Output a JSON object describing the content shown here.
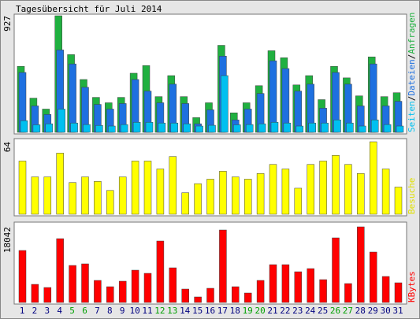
{
  "chart_data": [
    {
      "type": "bar",
      "title": "Tagesübersicht für Juli 2014",
      "categories": [
        "1",
        "2",
        "3",
        "4",
        "5",
        "6",
        "7",
        "8",
        "9",
        "10",
        "11",
        "12",
        "13",
        "14",
        "15",
        "16",
        "17",
        "18",
        "19",
        "20",
        "21",
        "22",
        "23",
        "24",
        "25",
        "26",
        "27",
        "28",
        "29",
        "30",
        "31"
      ],
      "category_colors": [
        "#000080",
        "#000080",
        "#000080",
        "#000080",
        "#00a000",
        "#00a000",
        "#000080",
        "#000080",
        "#000080",
        "#000080",
        "#000080",
        "#00a000",
        "#00a000",
        "#000080",
        "#000080",
        "#000080",
        "#000080",
        "#000080",
        "#00a000",
        "#00a000",
        "#000080",
        "#000080",
        "#000080",
        "#000080",
        "#000080",
        "#00a000",
        "#00a000",
        "#000080",
        "#000080",
        "#000080",
        "#000080"
      ],
      "legend_separator": "/",
      "ylim": [
        0,
        927
      ],
      "yticks": [
        927
      ],
      "series": [
        {
          "name": "Anfragen",
          "color": "#20b040",
          "values": [
            525,
            272,
            185,
            927,
            618,
            420,
            278,
            235,
            278,
            470,
            531,
            284,
            451,
            284,
            117,
            235,
            692,
            155,
            235,
            371,
            649,
            593,
            377,
            451,
            260,
            525,
            433,
            290,
            600,
            284,
            315
          ]
        },
        {
          "name": "Dateien",
          "color": "#1e70e0",
          "values": [
            476,
            210,
            142,
            655,
            544,
            358,
            222,
            185,
            229,
            420,
            328,
            235,
            383,
            229,
            68,
            179,
            606,
            99,
            185,
            309,
            569,
            507,
            328,
            383,
            192,
            476,
            383,
            210,
            544,
            210,
            247
          ]
        },
        {
          "name": "Seiten",
          "color": "#00c0f0",
          "values": [
            93,
            60,
            68,
            185,
            74,
            62,
            55,
            50,
            62,
            80,
            80,
            74,
            74,
            68,
            50,
            56,
            451,
            60,
            62,
            68,
            80,
            74,
            50,
            74,
            74,
            99,
            74,
            50,
            99,
            62,
            50
          ]
        }
      ]
    },
    {
      "type": "bar",
      "ylim": [
        0,
        64
      ],
      "yticks": [
        64
      ],
      "series": [
        {
          "name": "Besuche",
          "color": "#ffff00",
          "values": [
            47,
            33,
            33,
            54,
            28,
            33,
            29,
            21,
            33,
            47,
            47,
            40,
            51,
            19,
            27,
            31,
            38,
            33,
            31,
            36,
            44,
            40,
            23,
            44,
            47,
            52,
            44,
            36,
            64,
            40,
            24
          ]
        }
      ]
    },
    {
      "type": "bar",
      "ylim": [
        0,
        18042
      ],
      "yticks": [
        18042
      ],
      "series": [
        {
          "name": "KBytes",
          "color": "#ff0000",
          "values": [
            12404,
            4322,
            3571,
            15223,
            8833,
            9209,
            5262,
            3759,
            5074,
            7705,
            6954,
            14659,
            8269,
            3195,
            1316,
            3383,
            17290,
            3759,
            2255,
            5262,
            9021,
            9021,
            7329,
            8081,
            5450,
            15411,
            4510,
            18042,
            12028,
            6202,
            4698
          ]
        }
      ]
    }
  ]
}
